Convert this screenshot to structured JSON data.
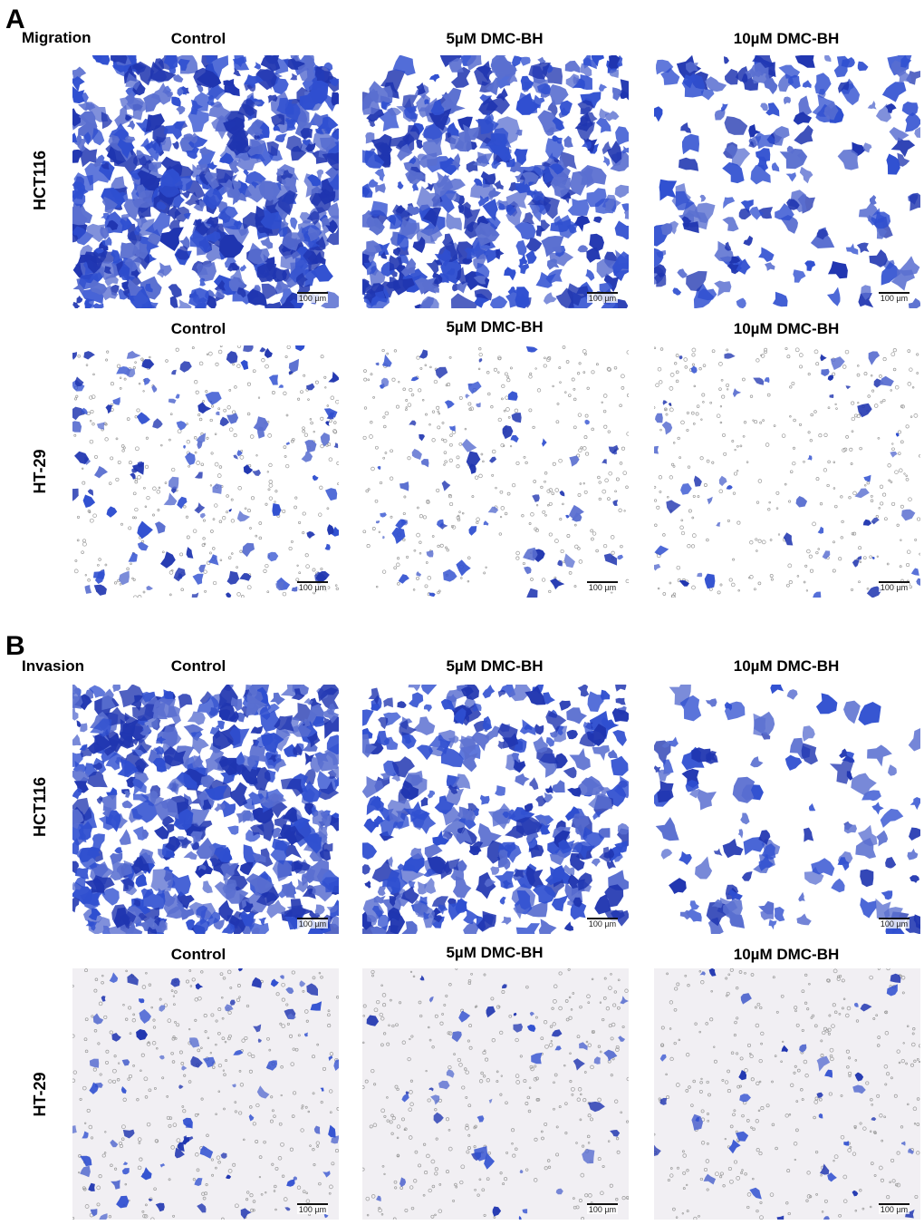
{
  "figure": {
    "panels": [
      {
        "letter": "A",
        "assay": "Migration",
        "rows": [
          {
            "cell_line": "HCT116",
            "columns": [
              "Control",
              "5µM DMC-BH",
              "10µM DMC-BH"
            ]
          },
          {
            "cell_line": "HT-29",
            "columns": [
              "Control",
              "5µM DMC-BH",
              "10µM DMC-BH"
            ]
          }
        ]
      },
      {
        "letter": "B",
        "assay": "Invasion",
        "rows": [
          {
            "cell_line": "HCT116",
            "columns": [
              "Control",
              "5µM DMC-BH",
              "10µM DMC-BH"
            ]
          },
          {
            "cell_line": "HT-29",
            "columns": [
              "Control",
              "5µM DMC-BH",
              "10µM DMC-BH"
            ]
          }
        ]
      }
    ],
    "scale_bar": "100 µm",
    "colors": {
      "stain_dark": "#1f35b0",
      "stain_mid": "#2f4fd0",
      "stain_light": "#5a6fd0",
      "background": "#ffffff",
      "pore": "#9a9a9a",
      "ht29_background": "#f1eff3"
    }
  }
}
